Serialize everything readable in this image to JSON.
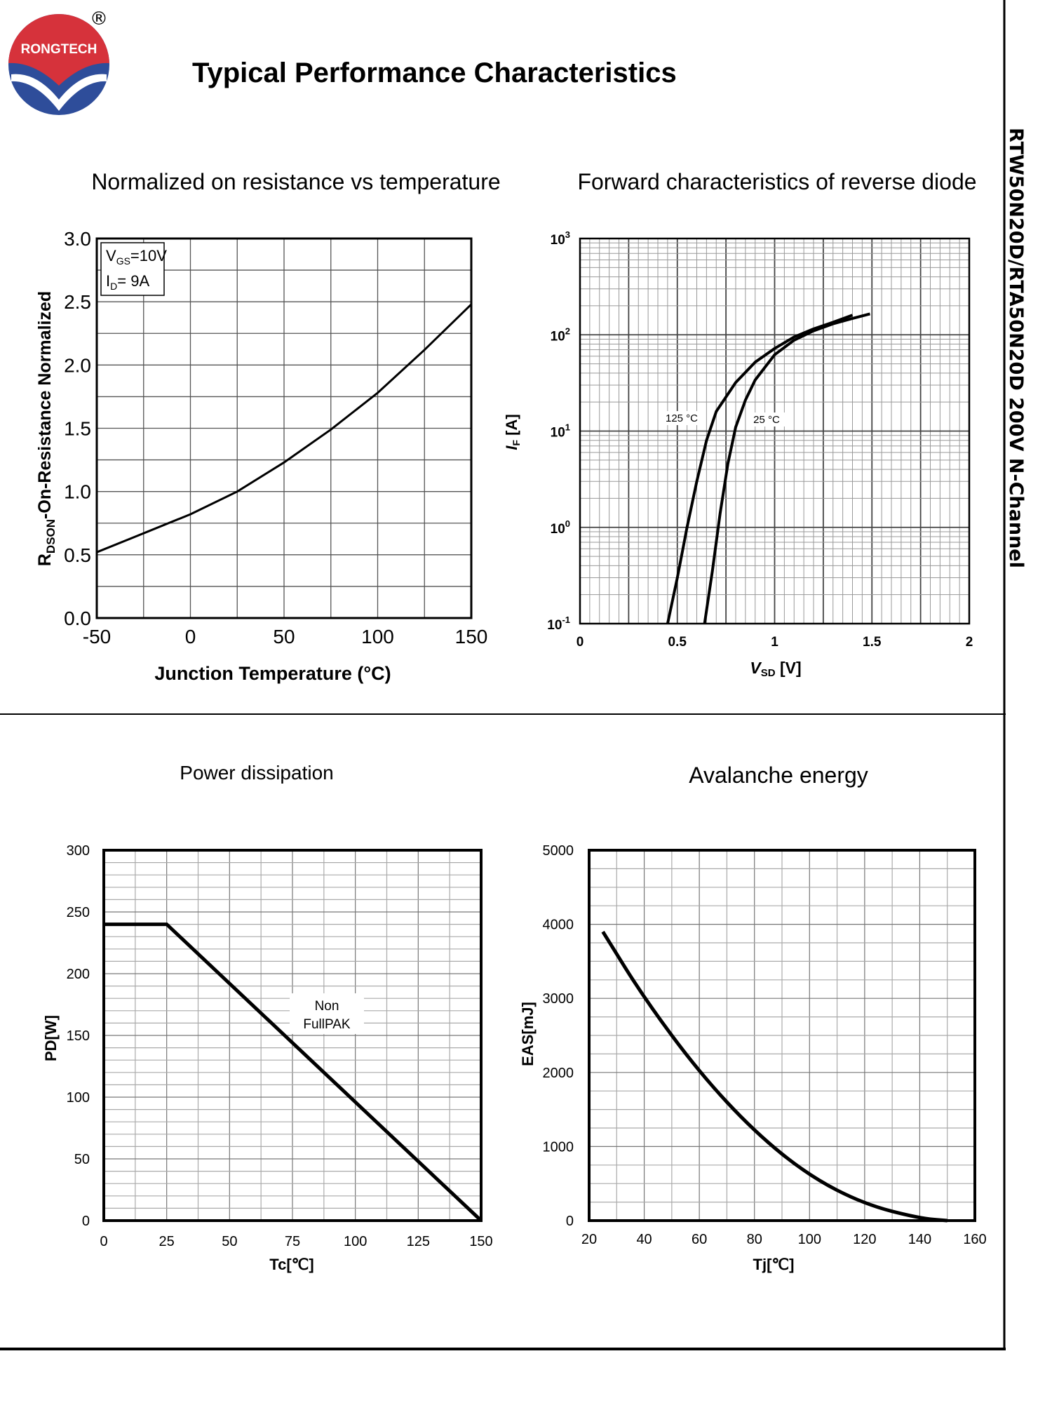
{
  "header": {
    "brand": "RONGTECH",
    "registered_mark": "®",
    "title": "Typical Performance Characteristics",
    "side_title": "RTW50N20D/RTA50N20D 200V N-Channel"
  },
  "colors": {
    "logo_red": "#d6323b",
    "logo_blue": "#2e4d9a",
    "line": "#000000",
    "grid": "#6b6b6b"
  },
  "chart_data": [
    {
      "type": "line",
      "title": "Normalized on resistance vs temperature",
      "xlabel": "Junction Temperature (°C)",
      "ylabel_main": "R",
      "ylabel_sub": "DSON",
      "ylabel_rest": "-On-Resistance Normalized",
      "xlim": [
        -50,
        150
      ],
      "ylim": [
        0,
        3.0
      ],
      "x_ticks": [
        "-50",
        "0",
        "50",
        "100",
        "150"
      ],
      "y_ticks": [
        "0.0",
        "0.5",
        "1.0",
        "1.5",
        "2.0",
        "2.5",
        "3.0"
      ],
      "legend": {
        "line1_main": "V",
        "line1_sub": "GS",
        "line1_rest": "=10V",
        "line2_main": "I",
        "line2_sub": "D",
        "line2_rest": "= 9A"
      },
      "series": [
        {
          "name": "RDSON",
          "x": [
            -50,
            -25,
            0,
            25,
            50,
            75,
            100,
            125,
            150
          ],
          "y": [
            0.52,
            0.67,
            0.82,
            1.0,
            1.23,
            1.49,
            1.78,
            2.12,
            2.48
          ]
        }
      ]
    },
    {
      "type": "line",
      "title": "Forward characteristics of reverse diode",
      "xlabel_main": "V",
      "xlabel_sub": "SD",
      "xlabel_rest": " [V]",
      "ylabel_main": "I",
      "ylabel_sub": "F",
      "ylabel_rest": " [A]",
      "yscale": "log",
      "xlim": [
        0,
        2
      ],
      "ylim": [
        0.1,
        1000
      ],
      "x_ticks": [
        "0",
        "0.5",
        "1",
        "1.5",
        "2"
      ],
      "y_ticks": [
        {
          "base": "10",
          "exp": "-1"
        },
        {
          "base": "10",
          "exp": "0"
        },
        {
          "base": "10",
          "exp": "1"
        },
        {
          "base": "10",
          "exp": "2"
        },
        {
          "base": "10",
          "exp": "3"
        }
      ],
      "series": [
        {
          "name": "125 °C",
          "x": [
            0.45,
            0.5,
            0.55,
            0.6,
            0.65,
            0.7,
            0.8,
            0.9,
            1.0,
            1.1,
            1.2,
            1.3,
            1.4
          ],
          "y": [
            0.1,
            0.3,
            1.0,
            3.0,
            8.0,
            16.0,
            32.0,
            52.0,
            72.0,
            95.0,
            115.0,
            135.0,
            160.0
          ]
        },
        {
          "name": "25 °C",
          "x": [
            0.64,
            0.68,
            0.72,
            0.76,
            0.8,
            0.85,
            0.9,
            1.0,
            1.1,
            1.2,
            1.3,
            1.4,
            1.49
          ],
          "y": [
            0.1,
            0.35,
            1.4,
            4.6,
            11.0,
            21.0,
            34.0,
            62.0,
            88.0,
            110.0,
            130.0,
            148.0,
            165.0
          ]
        }
      ],
      "annotations": [
        "125 °C",
        "25 °C"
      ]
    },
    {
      "type": "line",
      "title": "Power dissipation",
      "xlabel": "Tc[℃]",
      "ylabel": "PD[W]",
      "xlim": [
        0,
        150
      ],
      "ylim": [
        0,
        300
      ],
      "x_ticks": [
        "0",
        "25",
        "50",
        "75",
        "100",
        "125",
        "150"
      ],
      "y_ticks": [
        "0",
        "50",
        "100",
        "150",
        "200",
        "250",
        "300"
      ],
      "annotation_lines": [
        "Non",
        "FullPAK"
      ],
      "series": [
        {
          "name": "Non FullPAK",
          "x": [
            0,
            25,
            150
          ],
          "y": [
            240,
            240,
            0
          ]
        }
      ]
    },
    {
      "type": "line",
      "title": "Avalanche energy",
      "xlabel": "Tj[℃]",
      "ylabel": "EAS[mJ]",
      "xlim": [
        20,
        160
      ],
      "ylim": [
        0,
        5000
      ],
      "x_ticks": [
        "20",
        "40",
        "60",
        "80",
        "100",
        "120",
        "140",
        "160"
      ],
      "y_ticks": [
        "0",
        "1000",
        "2000",
        "3000",
        "4000",
        "5000"
      ],
      "series": [
        {
          "name": "EAS",
          "x": [
            25,
            40,
            60,
            80,
            100,
            120,
            140,
            150
          ],
          "y": [
            3900,
            3000,
            2000,
            1200,
            600,
            220,
            30,
            0
          ]
        }
      ]
    }
  ]
}
